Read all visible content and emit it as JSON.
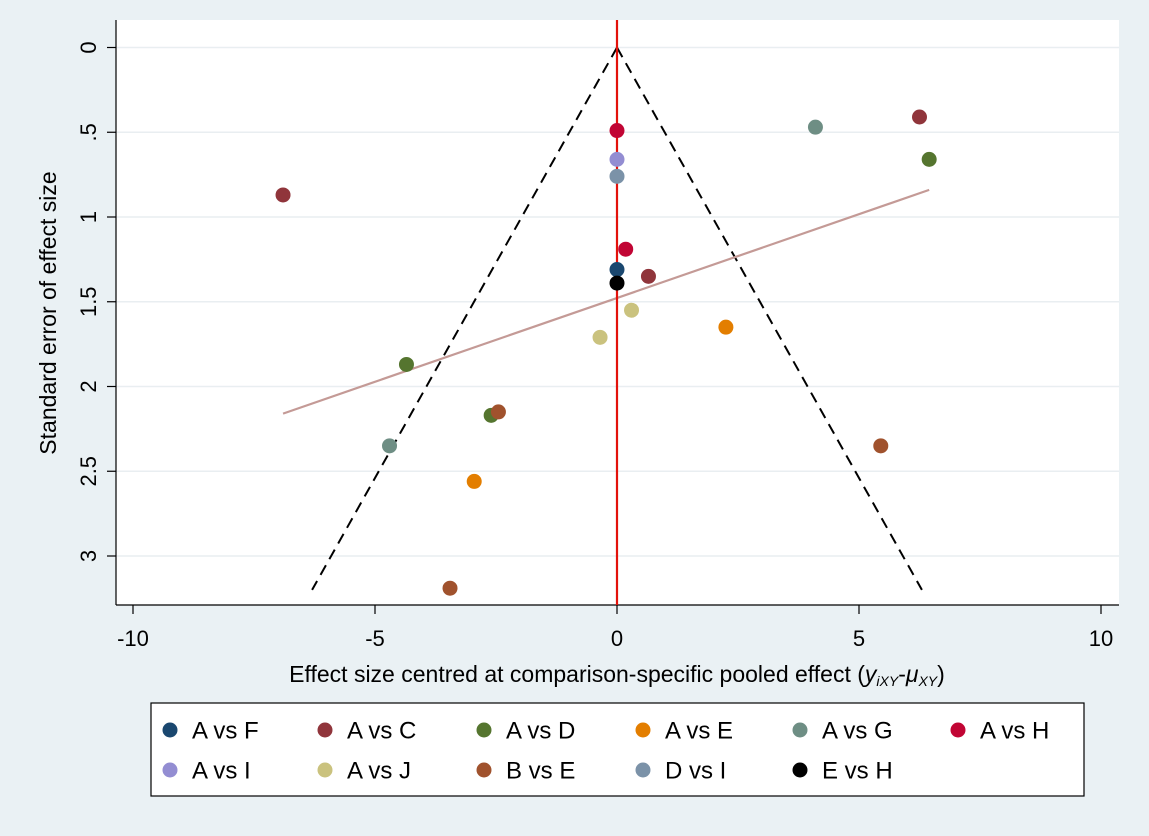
{
  "chart_data": {
    "type": "scatter",
    "subtype": "comparison-adjusted funnel plot",
    "xlabel": {
      "main": "Effect size centred at comparison-specific pooled effect (",
      "y": "y",
      "y_sub": "iXY",
      "dash": "-",
      "mu": "μ",
      "mu_sub": "XY",
      "close": ")"
    },
    "ylabel": "Standard error of effect size",
    "xlim": [
      -10.3,
      10.4
    ],
    "ylim": [
      3.3,
      -0.1
    ],
    "y_reversed": true,
    "xticks": [
      -10,
      -5,
      0,
      5,
      10
    ],
    "xtick_labels": [
      "-10",
      "-5",
      "0",
      "5",
      "10"
    ],
    "yticks": [
      0,
      0.5,
      1,
      1.5,
      2,
      2.5,
      3
    ],
    "ytick_labels": [
      "0",
      ".5",
      "1",
      "1.5",
      "2",
      "2.5",
      "3"
    ],
    "grid": true,
    "reference_line": {
      "x": 0,
      "color": "#e3120b"
    },
    "funnel": {
      "apex": [
        0,
        0
      ],
      "left_end": [
        -6.3,
        3.2
      ],
      "right_end": [
        6.3,
        3.2
      ],
      "style": "dashed",
      "color": "#000000"
    },
    "fit_line": {
      "x1": -6.9,
      "y1": 2.16,
      "x2": 6.45,
      "y2": 0.84,
      "color": "#c49a96"
    },
    "series": [
      {
        "name": "A vs F",
        "color": "#1a476f",
        "points": [
          [
            0.0,
            1.31
          ]
        ]
      },
      {
        "name": "A vs C",
        "color": "#90353b",
        "points": [
          [
            6.25,
            0.41
          ],
          [
            -6.9,
            0.87
          ],
          [
            0.65,
            1.35
          ]
        ]
      },
      {
        "name": "A vs D",
        "color": "#55752f",
        "points": [
          [
            6.45,
            0.66
          ],
          [
            -4.35,
            1.87
          ],
          [
            -2.6,
            2.17
          ]
        ]
      },
      {
        "name": "A vs E",
        "color": "#e37e00",
        "points": [
          [
            2.25,
            1.65
          ],
          [
            -2.95,
            2.56
          ]
        ]
      },
      {
        "name": "A vs G",
        "color": "#6e8e84",
        "points": [
          [
            4.1,
            0.47
          ],
          [
            -4.7,
            2.35
          ]
        ]
      },
      {
        "name": "A vs H",
        "color": "#c10534",
        "points": [
          [
            0.0,
            0.49
          ],
          [
            0.18,
            1.19
          ]
        ]
      },
      {
        "name": "A vs I",
        "color": "#938dd2",
        "points": [
          [
            0.0,
            0.66
          ]
        ]
      },
      {
        "name": "A vs J",
        "color": "#cac27e",
        "points": [
          [
            -0.35,
            1.71
          ],
          [
            0.3,
            1.55
          ]
        ]
      },
      {
        "name": "B vs E",
        "color": "#a0522d",
        "points": [
          [
            -2.45,
            2.15
          ],
          [
            5.45,
            2.35
          ],
          [
            -3.45,
            3.19
          ]
        ]
      },
      {
        "name": "D vs I",
        "color": "#7b92a8",
        "points": [
          [
            0.0,
            0.76
          ]
        ]
      },
      {
        "name": "E vs H",
        "color": "#000000",
        "points": [
          [
            0.0,
            1.39
          ]
        ]
      }
    ],
    "legend": {
      "position": "bottom",
      "rows": [
        [
          "A vs F",
          "A vs C",
          "A vs D",
          "A vs E",
          "A vs G",
          "A vs H"
        ],
        [
          "A vs I",
          "A vs J",
          "B vs E",
          "D vs I",
          "E vs H"
        ]
      ]
    }
  }
}
